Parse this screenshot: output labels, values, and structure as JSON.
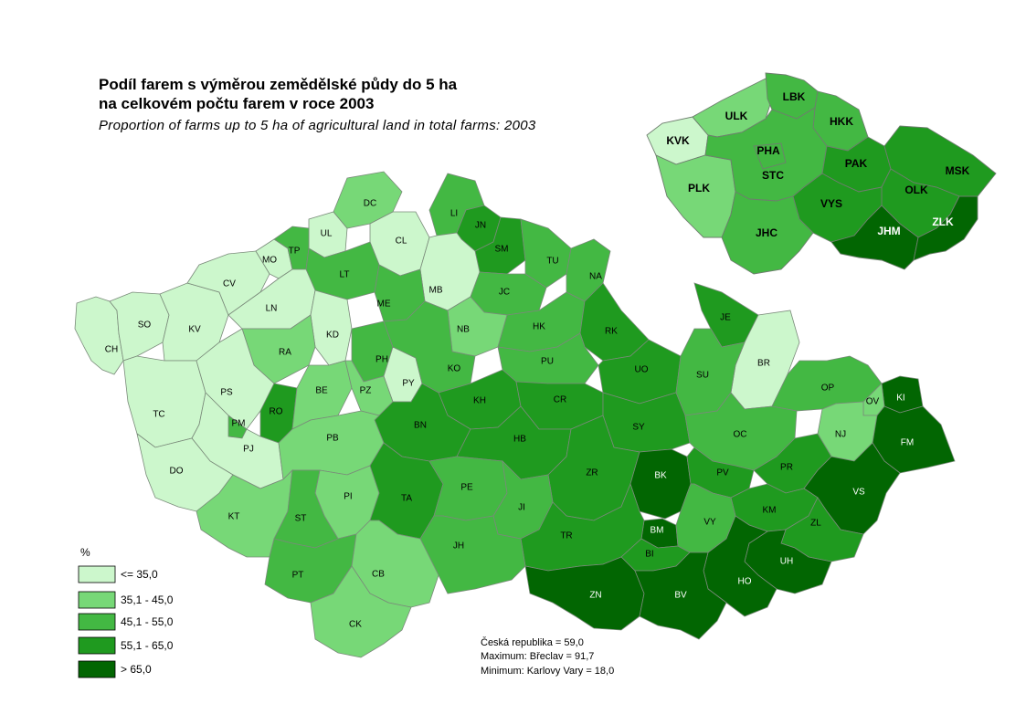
{
  "title": {
    "line1": "Podíl farem s výměrou zemědělské půdy do 5 ha",
    "line2": "na celkovém počtu farem v roce 2003",
    "english": "Proportion of farms up to 5 ha of agricultural land in total farms: 2003"
  },
  "legend": {
    "unit": "%",
    "classes": [
      {
        "label": "<= 35,0",
        "color": "#ccf7cc"
      },
      {
        "label": "35,1 - 45,0",
        "color": "#77d877"
      },
      {
        "label": "45,1 - 55,0",
        "color": "#43b843"
      },
      {
        "label": "55,1 - 65,0",
        "color": "#1f9a1f"
      },
      {
        "label": "> 65,0",
        "color": "#026602"
      }
    ]
  },
  "stats": {
    "country": "Česká republika = 59,0",
    "maximum": "Maximum: Břeclav  = 91,7",
    "minimum": "Minimum: Karlovy Vary  = 18,0"
  },
  "districts": [
    {
      "code": "CH",
      "class": 0
    },
    {
      "code": "SO",
      "class": 0
    },
    {
      "code": "KV",
      "class": 0
    },
    {
      "code": "CV",
      "class": 0
    },
    {
      "code": "MO",
      "class": 0
    },
    {
      "code": "UL",
      "class": 0
    },
    {
      "code": "DC",
      "class": 1
    },
    {
      "code": "CL",
      "class": 0
    },
    {
      "code": "TP",
      "class": 2
    },
    {
      "code": "LT",
      "class": 2
    },
    {
      "code": "LN",
      "class": 0
    },
    {
      "code": "LI",
      "class": 2
    },
    {
      "code": "JN",
      "class": 3
    },
    {
      "code": "SM",
      "class": 3
    },
    {
      "code": "MB",
      "class": 0
    },
    {
      "code": "ME",
      "class": 2
    },
    {
      "code": "TU",
      "class": 2
    },
    {
      "code": "NA",
      "class": 2
    },
    {
      "code": "JC",
      "class": 2
    },
    {
      "code": "KD",
      "class": 0
    },
    {
      "code": "RA",
      "class": 1
    },
    {
      "code": "NB",
      "class": 1
    },
    {
      "code": "HK",
      "class": 2
    },
    {
      "code": "RK",
      "class": 3
    },
    {
      "code": "TC",
      "class": 0
    },
    {
      "code": "PS",
      "class": 0
    },
    {
      "code": "PH",
      "class": 2
    },
    {
      "code": "PY",
      "class": 0
    },
    {
      "code": "KO",
      "class": 2
    },
    {
      "code": "PU",
      "class": 2
    },
    {
      "code": "UO",
      "class": 3
    },
    {
      "code": "JE",
      "class": 3
    },
    {
      "code": "BR",
      "class": 0
    },
    {
      "code": "SU",
      "class": 2
    },
    {
      "code": "OP",
      "class": 2
    },
    {
      "code": "KI",
      "class": 4
    },
    {
      "code": "OV",
      "class": 1
    },
    {
      "code": "RO",
      "class": 3
    },
    {
      "code": "BE",
      "class": 1
    },
    {
      "code": "PZ",
      "class": 1
    },
    {
      "code": "KH",
      "class": 3
    },
    {
      "code": "CR",
      "class": 3
    },
    {
      "code": "PM",
      "class": 2
    },
    {
      "code": "BN",
      "class": 3
    },
    {
      "code": "SY",
      "class": 3
    },
    {
      "code": "NJ",
      "class": 1
    },
    {
      "code": "FM",
      "class": 4
    },
    {
      "code": "PJ",
      "class": 0
    },
    {
      "code": "PB",
      "class": 1
    },
    {
      "code": "HB",
      "class": 3
    },
    {
      "code": "OC",
      "class": 2
    },
    {
      "code": "DO",
      "class": 0
    },
    {
      "code": "ZR",
      "class": 3
    },
    {
      "code": "BK",
      "class": 4
    },
    {
      "code": "PV",
      "class": 3
    },
    {
      "code": "PR",
      "class": 3
    },
    {
      "code": "VS",
      "class": 4
    },
    {
      "code": "KT",
      "class": 1
    },
    {
      "code": "PI",
      "class": 1
    },
    {
      "code": "TA",
      "class": 3
    },
    {
      "code": "PE",
      "class": 2
    },
    {
      "code": "JI",
      "class": 2
    },
    {
      "code": "KM",
      "class": 3
    },
    {
      "code": "ST",
      "class": 2
    },
    {
      "code": "BM",
      "class": 4
    },
    {
      "code": "VY",
      "class": 2
    },
    {
      "code": "ZL",
      "class": 3
    },
    {
      "code": "TR",
      "class": 3
    },
    {
      "code": "JH",
      "class": 2
    },
    {
      "code": "BI",
      "class": 3
    },
    {
      "code": "UH",
      "class": 4
    },
    {
      "code": "PT",
      "class": 2
    },
    {
      "code": "CB",
      "class": 1
    },
    {
      "code": "HO",
      "class": 4
    },
    {
      "code": "ZN",
      "class": 4
    },
    {
      "code": "BV",
      "class": 4
    },
    {
      "code": "CK",
      "class": 1
    }
  ],
  "regions": [
    {
      "code": "KVK",
      "class": 0
    },
    {
      "code": "ULK",
      "class": 1
    },
    {
      "code": "LBK",
      "class": 2
    },
    {
      "code": "HKK",
      "class": 2
    },
    {
      "code": "PHA",
      "class": 2
    },
    {
      "code": "STC",
      "class": 2
    },
    {
      "code": "PAK",
      "class": 3
    },
    {
      "code": "MSK",
      "class": 3
    },
    {
      "code": "PLK",
      "class": 1
    },
    {
      "code": "VYS",
      "class": 3
    },
    {
      "code": "OLK",
      "class": 3
    },
    {
      "code": "JHM",
      "class": 4
    },
    {
      "code": "ZLK",
      "class": 4
    },
    {
      "code": "JHC",
      "class": 2
    }
  ]
}
